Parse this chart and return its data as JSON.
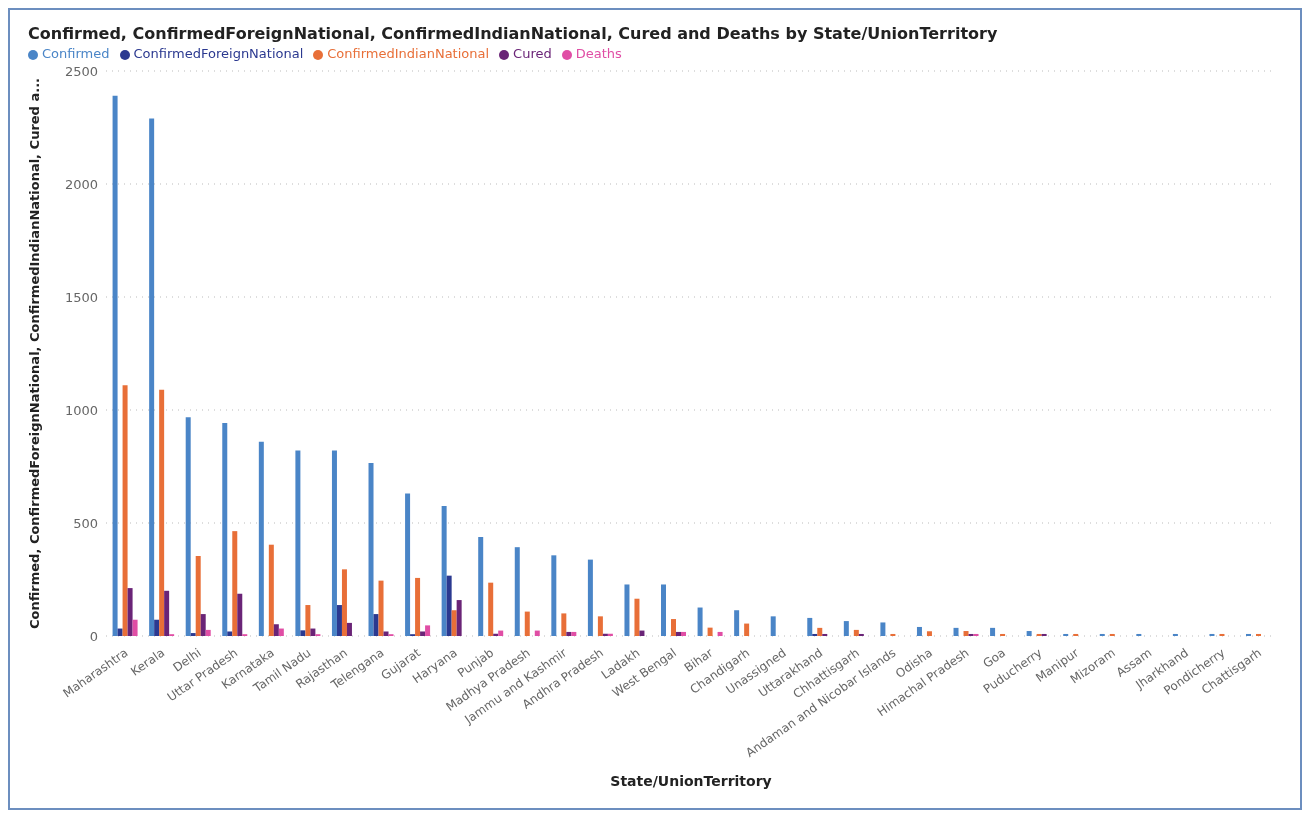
{
  "chart_data": {
    "type": "bar",
    "title": "Confirmed, ConfirmedForeignNational, ConfirmedIndianNational, Cured and Deaths by State/UnionTerritory",
    "xlabel": "State/UnionTerritory",
    "ylabel": "Confirmed, ConfirmedForeignNational, ConfirmedIndianNational, Cured a...",
    "categories": [
      "Maharashtra",
      "Kerala",
      "Delhi",
      "Uttar Pradesh",
      "Karnataka",
      "Tamil Nadu",
      "Rajasthan",
      "Telengana",
      "Gujarat",
      "Haryana",
      "Punjab",
      "Madhya Pradesh",
      "Jammu and Kashmir",
      "Andhra Pradesh",
      "Ladakh",
      "West Bengal",
      "Bihar",
      "Chandigarh",
      "Unassigned",
      "Uttarakhand",
      "Chhattisgarh",
      "Andaman and Nicobar Islands",
      "Odisha",
      "Himachal Pradesh",
      "Goa",
      "Puducherry",
      "Manipur",
      "Mizoram",
      "Assam",
      "Jharkhand",
      "Pondicherry",
      "Chattisgarh"
    ],
    "series": [
      {
        "name": "Confirmed",
        "color": "#4a85c7",
        "values": [
          2390,
          2290,
          968,
          943,
          860,
          821,
          821,
          765,
          630,
          575,
          438,
          393,
          357,
          338,
          228,
          228,
          126,
          114,
          87,
          80,
          66,
          60,
          40,
          36,
          36,
          22,
          9,
          9,
          9,
          9,
          9,
          9
        ]
      },
      {
        "name": "ConfirmedForeignNational",
        "color": "#2b3990",
        "values": [
          33,
          72,
          13,
          20,
          null,
          25,
          137,
          97,
          8,
          267,
          null,
          null,
          null,
          null,
          null,
          null,
          null,
          null,
          null,
          9,
          null,
          null,
          null,
          null,
          null,
          null,
          null,
          null,
          null,
          null,
          null,
          null
        ]
      },
      {
        "name": "ConfirmedIndianNational",
        "color": "#e86f38",
        "values": [
          1110,
          1090,
          354,
          464,
          404,
          137,
          295,
          245,
          257,
          114,
          236,
          108,
          100,
          87,
          165,
          75,
          37,
          55,
          null,
          36,
          27,
          9,
          21,
          22,
          9,
          9,
          9,
          9,
          null,
          null,
          9,
          9
        ]
      },
      {
        "name": "Cured",
        "color": "#6a2477",
        "values": [
          212,
          200,
          97,
          187,
          52,
          33,
          58,
          20,
          20,
          159,
          10,
          null,
          18,
          10,
          24,
          18,
          null,
          null,
          null,
          9,
          9,
          null,
          null,
          9,
          null,
          9,
          null,
          null,
          null,
          null,
          null,
          null
        ]
      },
      {
        "name": "Deaths",
        "color": "#e04ea5",
        "values": [
          72,
          8,
          27,
          8,
          33,
          8,
          null,
          8,
          47,
          null,
          24,
          24,
          18,
          10,
          null,
          18,
          18,
          null,
          null,
          null,
          null,
          null,
          null,
          9,
          null,
          null,
          null,
          null,
          null,
          null,
          null,
          null
        ]
      }
    ],
    "ylim": [
      0,
      2500
    ],
    "yticks": [
      0,
      500,
      1000,
      1500,
      2000,
      2500
    ],
    "grid": "y",
    "legend": "top left"
  }
}
